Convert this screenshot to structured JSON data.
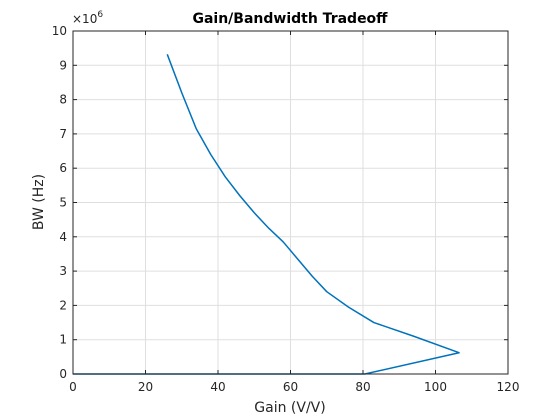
{
  "chart_data": {
    "type": "line",
    "title": "Gain/Bandwidth Tradeoff",
    "xlabel": "Gain (V/V)",
    "ylabel": "BW (Hz)",
    "y_exponent_label": "×10",
    "y_exponent_power": "6",
    "xlim": [
      0,
      120
    ],
    "ylim": [
      0,
      10
    ],
    "y_multiplier": 1000000,
    "x_ticks": [
      0,
      20,
      40,
      60,
      80,
      100,
      120
    ],
    "y_ticks": [
      0,
      1,
      2,
      3,
      4,
      5,
      6,
      7,
      8,
      9,
      10
    ],
    "grid": true,
    "series": [
      {
        "color": "#0072BD",
        "x": [
          26,
          30,
          34,
          38,
          42,
          46,
          50,
          54,
          58,
          62,
          66,
          70,
          76,
          83,
          94,
          106.5,
          80.5,
          0
        ],
        "y": [
          9.32,
          8.2,
          7.15,
          6.4,
          5.75,
          5.2,
          4.7,
          4.25,
          3.85,
          3.35,
          2.85,
          2.4,
          1.95,
          1.5,
          1.1,
          0.62,
          0.0,
          0.0
        ]
      }
    ]
  }
}
